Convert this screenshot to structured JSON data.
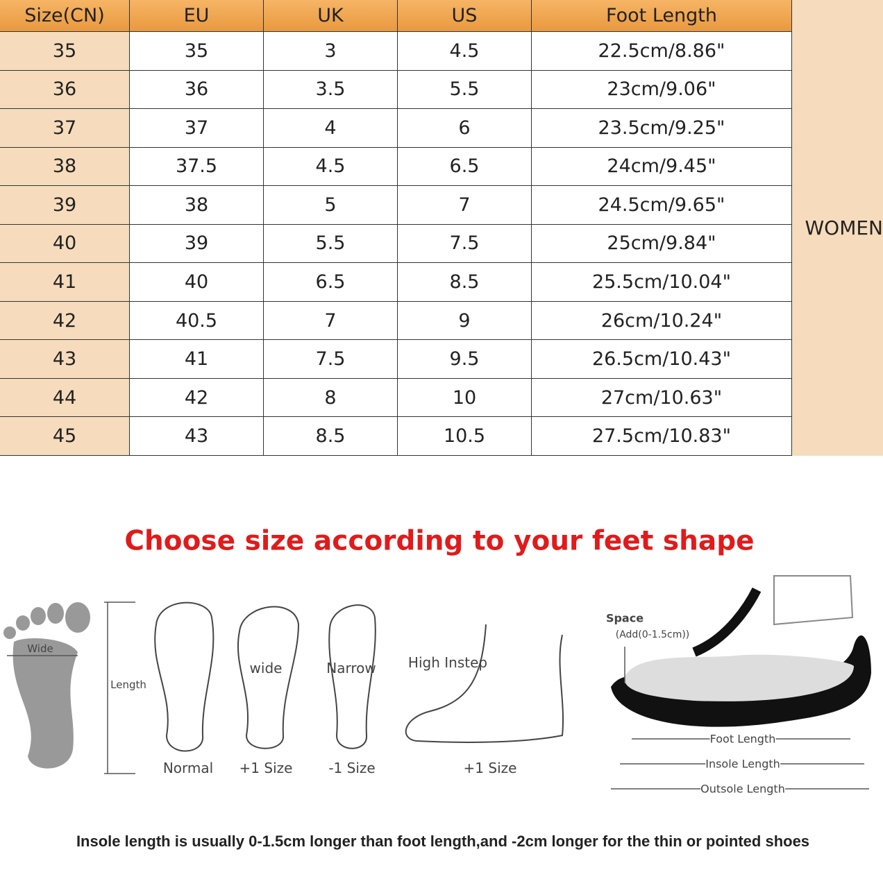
{
  "table": {
    "header": [
      "Size(CN)",
      "EU",
      "UK",
      "US",
      "Foot Length"
    ],
    "rows": [
      [
        "35",
        "35",
        "3",
        "4.5",
        "22.5cm/8.86\""
      ],
      [
        "36",
        "36",
        "3.5",
        "5.5",
        "23cm/9.06\""
      ],
      [
        "37",
        "37",
        "4",
        "6",
        "23.5cm/9.25\""
      ],
      [
        "38",
        "37.5",
        "4.5",
        "6.5",
        "24cm/9.45\""
      ],
      [
        "39",
        "38",
        "5",
        "7",
        "24.5cm/9.65\""
      ],
      [
        "40",
        "39",
        "5.5",
        "7.5",
        "25cm/9.84\""
      ],
      [
        "41",
        "40",
        "6.5",
        "8.5",
        "25.5cm/10.04\""
      ],
      [
        "42",
        "40.5",
        "7",
        "9",
        "26cm/10.24\""
      ],
      [
        "43",
        "41",
        "7.5",
        "9.5",
        "26.5cm/10.43\""
      ],
      [
        "44",
        "42",
        "8",
        "10",
        "27cm/10.63\""
      ],
      [
        "45",
        "43",
        "8.5",
        "10.5",
        "27.5cm/10.83\""
      ]
    ],
    "side_label": "WOMEN"
  },
  "guide": {
    "title": "Choose size according to your feet shape",
    "labels": {
      "wide_mark": "Wide",
      "length": "Length",
      "wide": "wide",
      "narrow": "Narrow",
      "high_instep": "High Instep",
      "normal": "Normal",
      "wide_size": "+1 Size",
      "narrow_size": "-1 Size",
      "instep_size": "+1 Size",
      "space": "Space",
      "space_add": "(Add(0-1.5cm))",
      "foot_length": "Foot Length",
      "insole_length": "Insole Length",
      "outsole_length": "Outsole Length"
    },
    "note": "Insole length is usually 0-1.5cm longer than foot length,and -2cm longer for the thin or pointed shoes"
  }
}
